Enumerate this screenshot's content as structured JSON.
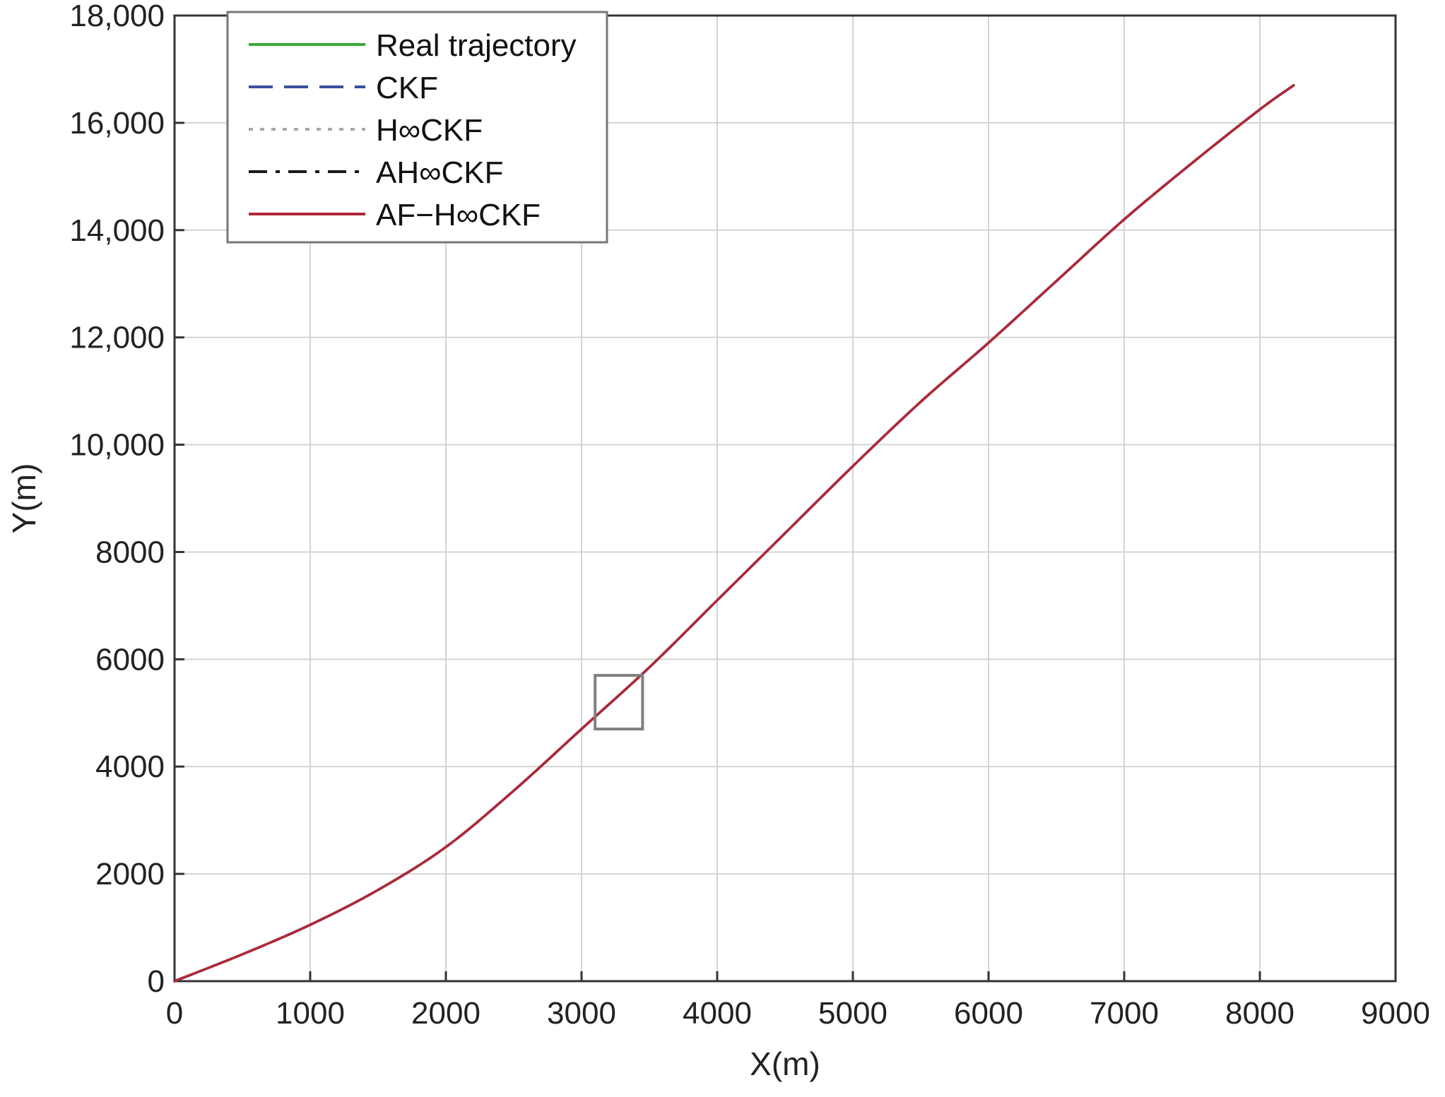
{
  "chart_data": {
    "type": "line",
    "xlabel": "X(m)",
    "ylabel": "Y(m)",
    "xlim": [
      0,
      9000
    ],
    "ylim": [
      0,
      18000
    ],
    "xticks": [
      0,
      1000,
      2000,
      3000,
      4000,
      5000,
      6000,
      7000,
      8000,
      9000
    ],
    "xtick_labels": [
      "0",
      "1000",
      "2000",
      "3000",
      "4000",
      "5000",
      "6000",
      "7000",
      "8000",
      "9000"
    ],
    "yticks": [
      0,
      2000,
      4000,
      6000,
      8000,
      10000,
      12000,
      14000,
      16000,
      18000
    ],
    "ytick_labels": [
      "0",
      "2000",
      "4000",
      "6000",
      "8000",
      "10,000",
      "12,000",
      "14,000",
      "16,000",
      "18,000"
    ],
    "grid": true,
    "legend_position": "top-left",
    "series": [
      {
        "name": "Real trajectory",
        "color": "#3aa838",
        "style": "solid"
      },
      {
        "name": "CKF",
        "color": "#3b4e9c",
        "style": "dashed"
      },
      {
        "name": "H∞CKF",
        "color": "#a8a8a8",
        "style": "dotted"
      },
      {
        "name": "AH∞CKF",
        "color": "#1a1a1a",
        "style": "dashdot"
      },
      {
        "name": "AF−H∞CKF",
        "color": "#b0283a",
        "style": "solid"
      }
    ],
    "trajectory": {
      "x": [
        0,
        500,
        1000,
        1500,
        2000,
        2500,
        3000,
        3500,
        4000,
        4500,
        5000,
        5500,
        6000,
        6500,
        7000,
        7500,
        8000,
        8250
      ],
      "y": [
        0,
        500,
        1050,
        1700,
        2500,
        3550,
        4700,
        5850,
        7100,
        8350,
        9600,
        10800,
        11900,
        13050,
        14200,
        15250,
        16250,
        16700
      ]
    },
    "zoom_box": {
      "x": [
        3100,
        3450
      ],
      "y": [
        4700,
        5700
      ]
    }
  }
}
